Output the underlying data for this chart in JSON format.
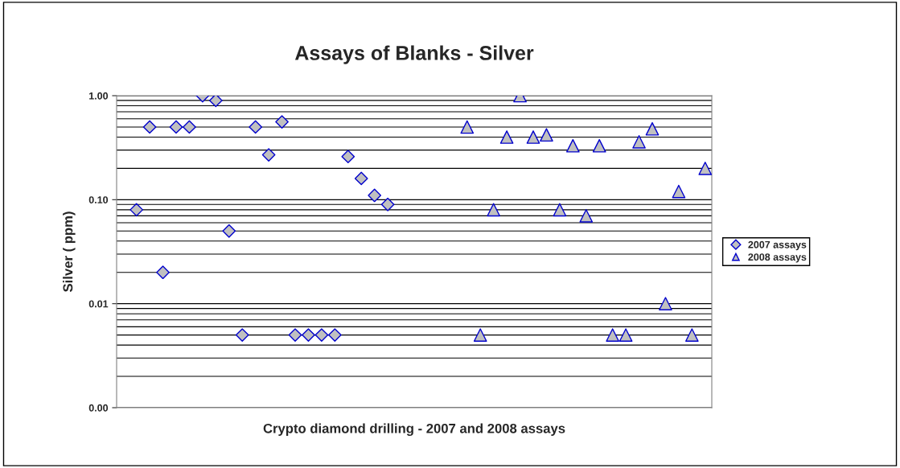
{
  "chart_data": {
    "type": "scatter",
    "title": "Assays of Blanks - Silver",
    "xlabel": "Crypto diamond drilling - 2007 and 2008 assays",
    "ylabel": "Silver ( ppm)",
    "categories": [
      null,
      null,
      null,
      null,
      null,
      null,
      null,
      null,
      null,
      null,
      null,
      null,
      null,
      null,
      null,
      null,
      null,
      null,
      null,
      null,
      null,
      null,
      null,
      null,
      null,
      null,
      null,
      null,
      null,
      null,
      null,
      null,
      null,
      null,
      null,
      null,
      null,
      null,
      null,
      null,
      null,
      null,
      null,
      null,
      null
    ],
    "series": [
      {
        "name": "2007 assays",
        "color": "#c0c0c0",
        "marker": "diamond",
        "values": [
          null,
          0.08,
          0.5,
          0.02,
          0.5,
          0.5,
          1.0,
          0.9,
          0.05,
          0.005,
          0.5,
          0.27,
          0.56,
          0.005,
          0.005,
          0.005,
          0.005,
          0.26,
          0.16,
          0.11,
          0.09,
          null,
          null,
          null,
          null,
          null,
          null,
          null,
          null,
          null,
          null,
          null,
          null,
          null,
          null,
          null,
          null,
          null,
          null,
          null,
          null,
          null,
          null,
          null,
          null
        ]
      },
      {
        "name": "2008 assays",
        "color": "#c0c0c0",
        "marker": "triangle",
        "values": [
          null,
          null,
          null,
          null,
          null,
          null,
          null,
          null,
          null,
          null,
          null,
          null,
          null,
          null,
          null,
          null,
          null,
          null,
          null,
          null,
          null,
          null,
          null,
          null,
          null,
          null,
          0.5,
          0.005,
          0.08,
          0.4,
          1.0,
          0.4,
          0.42,
          0.08,
          0.33,
          0.07,
          0.33,
          0.005,
          0.005,
          0.36,
          0.48,
          0.01,
          0.12,
          0.005,
          0.2
        ]
      }
    ],
    "log": true,
    "ylim": [
      0.001,
      1
    ],
    "yticks": [
      {
        "value": 0.001,
        "label": "0.00"
      },
      {
        "value": 0.01,
        "label": "0.01"
      },
      {
        "value": 0.1,
        "label": "0.10"
      },
      {
        "value": 1,
        "label": "1.00"
      }
    ],
    "grid": "y",
    "legend": "right",
    "tick_labels": "y"
  }
}
